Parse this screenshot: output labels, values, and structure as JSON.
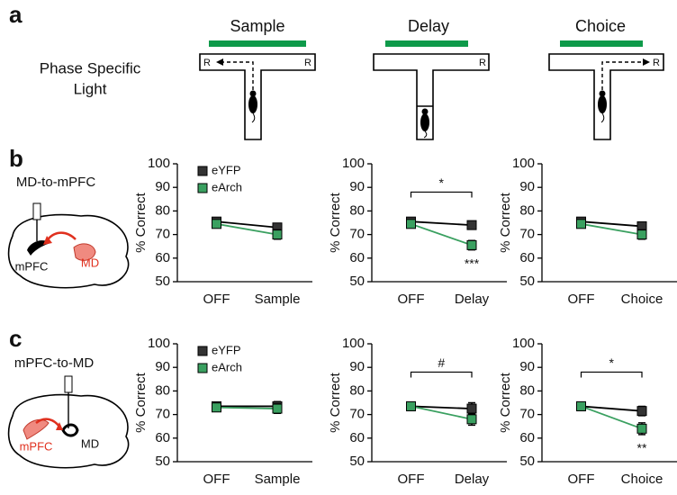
{
  "panel_labels": [
    "a",
    "b",
    "c"
  ],
  "panel_a": {
    "label_lines": [
      "Phase Specific",
      "Light"
    ],
    "phases": [
      "Sample",
      "Delay",
      "Choice"
    ],
    "reward_mark": "R"
  },
  "panel_b": {
    "title": "MD-to-mPFC",
    "region_source": "MD",
    "region_target": "mPFC"
  },
  "panel_c": {
    "title": "mPFC-to-MD",
    "region_source": "mPFC",
    "region_target": "MD"
  },
  "chart_data": [
    {
      "type": "line",
      "ylabel": "% Correct",
      "categories": [
        "OFF",
        "Sample"
      ],
      "ylim": [
        50,
        100
      ],
      "yticks": [
        50,
        60,
        70,
        80,
        90,
        100
      ],
      "legend": "upper left",
      "series": [
        {
          "name": "eYFP",
          "color": "#333333",
          "values": [
            75.5,
            73
          ],
          "errors": [
            1.5,
            1.5
          ]
        },
        {
          "name": "eArch",
          "color": "#3aa060",
          "values": [
            74.5,
            70
          ],
          "errors": [
            1.5,
            2
          ]
        }
      ]
    },
    {
      "type": "line",
      "ylabel": "% Correct",
      "categories": [
        "OFF",
        "Delay"
      ],
      "ylim": [
        50,
        100
      ],
      "yticks": [
        50,
        60,
        70,
        80,
        90,
        100
      ],
      "bracket_label": "*",
      "point_label": "***",
      "series": [
        {
          "name": "eYFP",
          "color": "#333333",
          "values": [
            75.5,
            74
          ],
          "errors": [
            1.5,
            1.5
          ]
        },
        {
          "name": "eArch",
          "color": "#3aa060",
          "values": [
            74.5,
            65.5
          ],
          "errors": [
            1.5,
            2
          ]
        }
      ]
    },
    {
      "type": "line",
      "ylabel": "% Correct",
      "categories": [
        "OFF",
        "Choice"
      ],
      "ylim": [
        50,
        100
      ],
      "yticks": [
        50,
        60,
        70,
        80,
        90,
        100
      ],
      "series": [
        {
          "name": "eYFP",
          "color": "#333333",
          "values": [
            75.5,
            73.5
          ],
          "errors": [
            1.5,
            1.5
          ]
        },
        {
          "name": "eArch",
          "color": "#3aa060",
          "values": [
            74.5,
            70
          ],
          "errors": [
            1.5,
            2
          ]
        }
      ]
    },
    {
      "type": "line",
      "ylabel": "% Correct",
      "categories": [
        "OFF",
        "Sample"
      ],
      "ylim": [
        50,
        100
      ],
      "yticks": [
        50,
        60,
        70,
        80,
        90,
        100
      ],
      "legend": "upper left",
      "series": [
        {
          "name": "eYFP",
          "color": "#333333",
          "values": [
            73.5,
            73.5
          ],
          "errors": [
            1.5,
            2
          ]
        },
        {
          "name": "eArch",
          "color": "#3aa060",
          "values": [
            73,
            72.5
          ],
          "errors": [
            1.5,
            2
          ]
        }
      ]
    },
    {
      "type": "line",
      "ylabel": "% Correct",
      "categories": [
        "OFF",
        "Delay"
      ],
      "ylim": [
        50,
        100
      ],
      "yticks": [
        50,
        60,
        70,
        80,
        90,
        100
      ],
      "bracket_label": "#",
      "series": [
        {
          "name": "eYFP",
          "color": "#333333",
          "values": [
            73.5,
            72.5
          ],
          "errors": [
            1.5,
            2.5
          ]
        },
        {
          "name": "eArch",
          "color": "#3aa060",
          "values": [
            73.5,
            68
          ],
          "errors": [
            1.5,
            2.5
          ]
        }
      ]
    },
    {
      "type": "line",
      "ylabel": "% Correct",
      "categories": [
        "OFF",
        "Choice"
      ],
      "ylim": [
        50,
        100
      ],
      "yticks": [
        50,
        60,
        70,
        80,
        90,
        100
      ],
      "bracket_label": "*",
      "point_label": "**",
      "series": [
        {
          "name": "eYFP",
          "color": "#333333",
          "values": [
            73.5,
            71.5
          ],
          "errors": [
            1.5,
            2
          ]
        },
        {
          "name": "eArch",
          "color": "#3aa060",
          "values": [
            73.5,
            64
          ],
          "errors": [
            1.5,
            2.5
          ]
        }
      ]
    }
  ]
}
